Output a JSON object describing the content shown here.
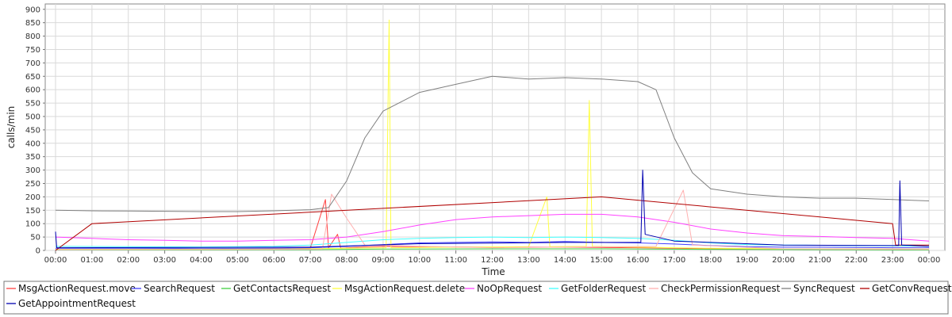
{
  "chart_data": {
    "type": "line",
    "xlabel": "Time",
    "ylabel": "calls/min",
    "ylim": [
      0,
      920
    ],
    "yticks": [
      0,
      50,
      100,
      150,
      200,
      250,
      300,
      350,
      400,
      450,
      500,
      550,
      600,
      650,
      700,
      750,
      800,
      850,
      900
    ],
    "xlim": [
      "00:00",
      "24:00"
    ],
    "xticks": [
      "00:00",
      "01:00",
      "02:00",
      "03:00",
      "04:00",
      "05:00",
      "06:00",
      "07:00",
      "08:00",
      "09:00",
      "10:00",
      "11:00",
      "12:00",
      "13:00",
      "14:00",
      "15:00",
      "16:00",
      "17:00",
      "18:00",
      "19:00",
      "20:00",
      "21:00",
      "22:00",
      "23:00",
      "00:00"
    ],
    "grid": true,
    "legend_position": "bottom",
    "series": [
      {
        "name": "MsgActionRequest.move",
        "color": "#ff4040",
        "points": [
          [
            "00:00",
            3
          ],
          [
            "02:00",
            4
          ],
          [
            "04:00",
            4
          ],
          [
            "06:00",
            6
          ],
          [
            "07:00",
            8
          ],
          [
            "07:25",
            190
          ],
          [
            "07:30",
            10
          ],
          [
            "07:45",
            60
          ],
          [
            "07:50",
            8
          ],
          [
            "08:20",
            12
          ],
          [
            "09:00",
            15
          ],
          [
            "10:00",
            14
          ],
          [
            "11:00",
            13
          ],
          [
            "12:00",
            12
          ],
          [
            "13:00",
            12
          ],
          [
            "14:00",
            12
          ],
          [
            "15:00",
            11
          ],
          [
            "16:00",
            10
          ],
          [
            "17:00",
            8
          ],
          [
            "18:00",
            6
          ],
          [
            "20:00",
            5
          ],
          [
            "22:00",
            5
          ],
          [
            "24:00",
            4
          ]
        ]
      },
      {
        "name": "SearchRequest",
        "color": "#4040ff",
        "points": [
          [
            "00:00",
            8
          ],
          [
            "02:00",
            8
          ],
          [
            "04:00",
            7
          ],
          [
            "06:00",
            8
          ],
          [
            "07:00",
            10
          ],
          [
            "08:00",
            15
          ],
          [
            "09:00",
            22
          ],
          [
            "10:00",
            28
          ],
          [
            "11:00",
            30
          ],
          [
            "12:00",
            32
          ],
          [
            "13:00",
            30
          ],
          [
            "14:00",
            33
          ],
          [
            "15:00",
            30
          ],
          [
            "16:00",
            28
          ],
          [
            "17:00",
            24
          ],
          [
            "18:00",
            18
          ],
          [
            "19:00",
            14
          ],
          [
            "20:00",
            12
          ],
          [
            "21:00",
            12
          ],
          [
            "22:00",
            11
          ],
          [
            "23:00",
            10
          ],
          [
            "24:00",
            10
          ]
        ]
      },
      {
        "name": "GetContactsRequest",
        "color": "#40d040",
        "points": [
          [
            "00:00",
            2
          ],
          [
            "04:00",
            2
          ],
          [
            "07:00",
            3
          ],
          [
            "09:00",
            5
          ],
          [
            "12:00",
            6
          ],
          [
            "15:00",
            6
          ],
          [
            "18:00",
            4
          ],
          [
            "21:00",
            3
          ],
          [
            "24:00",
            2
          ]
        ]
      },
      {
        "name": "MsgActionRequest.delete",
        "color": "#ffff40",
        "points": [
          [
            "00:00",
            4
          ],
          [
            "06:00",
            5
          ],
          [
            "08:00",
            8
          ],
          [
            "09:05",
            10
          ],
          [
            "09:10",
            860
          ],
          [
            "09:13",
            10
          ],
          [
            "11:00",
            12
          ],
          [
            "13:00",
            14
          ],
          [
            "13:30",
            200
          ],
          [
            "13:35",
            14
          ],
          [
            "14:35",
            15
          ],
          [
            "14:40",
            560
          ],
          [
            "14:45",
            15
          ],
          [
            "16:00",
            12
          ],
          [
            "18:00",
            8
          ],
          [
            "20:00",
            6
          ],
          [
            "24:00",
            5
          ]
        ]
      },
      {
        "name": "NoOpRequest",
        "color": "#ff40ff",
        "points": [
          [
            "00:00",
            50
          ],
          [
            "01:00",
            45
          ],
          [
            "02:00",
            40
          ],
          [
            "03:00",
            38
          ],
          [
            "04:00",
            35
          ],
          [
            "05:00",
            35
          ],
          [
            "06:00",
            38
          ],
          [
            "07:00",
            40
          ],
          [
            "08:00",
            50
          ],
          [
            "09:00",
            70
          ],
          [
            "10:00",
            95
          ],
          [
            "11:00",
            115
          ],
          [
            "12:00",
            125
          ],
          [
            "13:00",
            130
          ],
          [
            "14:00",
            135
          ],
          [
            "15:00",
            135
          ],
          [
            "16:00",
            125
          ],
          [
            "17:00",
            105
          ],
          [
            "18:00",
            80
          ],
          [
            "19:00",
            65
          ],
          [
            "20:00",
            55
          ],
          [
            "21:00",
            52
          ],
          [
            "22:00",
            48
          ],
          [
            "23:00",
            45
          ],
          [
            "24:00",
            35
          ]
        ]
      },
      {
        "name": "GetFolderRequest",
        "color": "#40ffff",
        "points": [
          [
            "00:00",
            15
          ],
          [
            "02:00",
            14
          ],
          [
            "04:00",
            13
          ],
          [
            "06:00",
            15
          ],
          [
            "07:00",
            20
          ],
          [
            "08:00",
            30
          ],
          [
            "09:00",
            40
          ],
          [
            "10:00",
            45
          ],
          [
            "11:00",
            48
          ],
          [
            "12:00",
            50
          ],
          [
            "13:00",
            48
          ],
          [
            "14:00",
            50
          ],
          [
            "15:00",
            48
          ],
          [
            "16:00",
            45
          ],
          [
            "17:00",
            38
          ],
          [
            "18:00",
            28
          ],
          [
            "19:00",
            22
          ],
          [
            "20:00",
            20
          ],
          [
            "22:00",
            18
          ],
          [
            "24:00",
            16
          ]
        ]
      },
      {
        "name": "CheckPermissionRequest",
        "color": "#ffb0b0",
        "points": [
          [
            "00:00",
            3
          ],
          [
            "06:00",
            4
          ],
          [
            "07:20",
            5
          ],
          [
            "07:35",
            210
          ],
          [
            "08:00",
            120
          ],
          [
            "08:30",
            20
          ],
          [
            "12:00",
            10
          ],
          [
            "16:30",
            15
          ],
          [
            "17:15",
            225
          ],
          [
            "17:30",
            20
          ],
          [
            "20:00",
            6
          ],
          [
            "24:00",
            4
          ]
        ]
      },
      {
        "name": "SyncRequest",
        "color": "#808080",
        "points": [
          [
            "00:00",
            150
          ],
          [
            "01:00",
            148
          ],
          [
            "02:00",
            147
          ],
          [
            "03:00",
            146
          ],
          [
            "04:00",
            145
          ],
          [
            "05:00",
            145
          ],
          [
            "06:00",
            148
          ],
          [
            "07:00",
            152
          ],
          [
            "07:30",
            160
          ],
          [
            "08:00",
            260
          ],
          [
            "08:30",
            420
          ],
          [
            "09:00",
            520
          ],
          [
            "10:00",
            590
          ],
          [
            "11:00",
            620
          ],
          [
            "12:00",
            650
          ],
          [
            "13:00",
            640
          ],
          [
            "14:00",
            645
          ],
          [
            "15:00",
            640
          ],
          [
            "16:00",
            630
          ],
          [
            "16:30",
            600
          ],
          [
            "17:00",
            420
          ],
          [
            "17:30",
            290
          ],
          [
            "18:00",
            230
          ],
          [
            "19:00",
            210
          ],
          [
            "20:00",
            200
          ],
          [
            "21:00",
            195
          ],
          [
            "22:00",
            195
          ],
          [
            "23:00",
            190
          ],
          [
            "24:00",
            185
          ]
        ]
      },
      {
        "name": "GetConvRequest",
        "color": "#b00000",
        "points": [
          [
            "00:00",
            0
          ],
          [
            "01:00",
            100
          ],
          [
            "15:00",
            200
          ],
          [
            "23:00",
            100
          ],
          [
            "23:05",
            20
          ],
          [
            "24:00",
            20
          ]
        ]
      },
      {
        "name": "GetAppointmentRequest",
        "color": "#0000b0",
        "points": [
          [
            "00:00",
            70
          ],
          [
            "00:02",
            10
          ],
          [
            "07:00",
            12
          ],
          [
            "10:00",
            25
          ],
          [
            "14:00",
            30
          ],
          [
            "16:05",
            30
          ],
          [
            "16:08",
            300
          ],
          [
            "16:12",
            60
          ],
          [
            "17:00",
            35
          ],
          [
            "20:00",
            20
          ],
          [
            "23:10",
            18
          ],
          [
            "23:12",
            260
          ],
          [
            "23:15",
            20
          ],
          [
            "24:00",
            15
          ]
        ]
      }
    ]
  }
}
